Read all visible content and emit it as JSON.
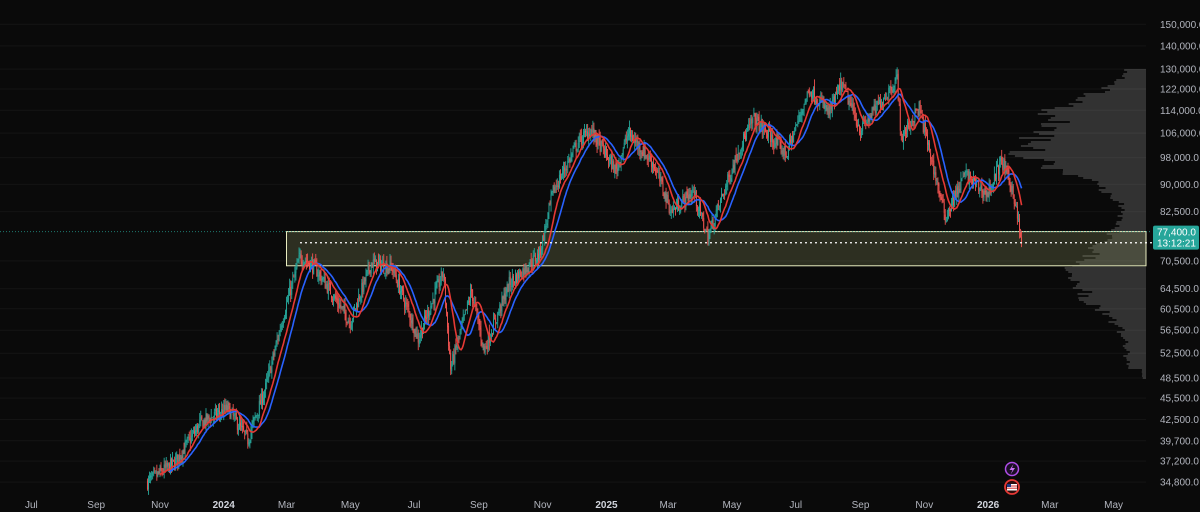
{
  "chart_data": {
    "type": "candlestick",
    "x_ticks": [
      {
        "label": "Jul",
        "bold": false
      },
      {
        "label": "Sep",
        "bold": false
      },
      {
        "label": "Nov",
        "bold": false
      },
      {
        "label": "2024",
        "bold": true
      },
      {
        "label": "Mar",
        "bold": false
      },
      {
        "label": "May",
        "bold": false
      },
      {
        "label": "Jul",
        "bold": false
      },
      {
        "label": "Sep",
        "bold": false
      },
      {
        "label": "Nov",
        "bold": false
      },
      {
        "label": "2025",
        "bold": true
      },
      {
        "label": "Mar",
        "bold": false
      },
      {
        "label": "May",
        "bold": false
      },
      {
        "label": "Jul",
        "bold": false
      },
      {
        "label": "Sep",
        "bold": false
      },
      {
        "label": "Nov",
        "bold": false
      },
      {
        "label": "2026",
        "bold": true
      },
      {
        "label": "Mar",
        "bold": false
      },
      {
        "label": "May",
        "bold": false
      }
    ],
    "x_tick_dates": [
      "2023-07-01",
      "2023-09-01",
      "2023-11-01",
      "2024-01-01",
      "2024-03-01",
      "2024-05-01",
      "2024-07-01",
      "2024-09-01",
      "2024-11-01",
      "2025-01-01",
      "2025-03-01",
      "2025-05-01",
      "2025-07-01",
      "2025-09-01",
      "2025-11-01",
      "2026-01-01",
      "2026-03-01",
      "2026-05-01"
    ],
    "x_range": [
      "2023-06-01",
      "2026-06-01"
    ],
    "y_scale": "log",
    "y_ticks": [
      "150,000.0",
      "140,000.0",
      "130,000.0",
      "122,000.0",
      "114,000.0",
      "106,000.0",
      "98,000.0",
      "90,000.0",
      "82,500.0",
      "70,500.0",
      "64,500.0",
      "60,500.0",
      "56,500.0",
      "52,500.0",
      "48,500.0",
      "45,500.0",
      "42,500.0",
      "39,700.0",
      "37,200.0",
      "34,800.0"
    ],
    "y_tick_values": [
      150000,
      140000,
      130000,
      122000,
      114000,
      106000,
      98000,
      90000,
      82500,
      70500,
      64500,
      60500,
      56500,
      52500,
      48500,
      45500,
      42500,
      39700,
      37200,
      34800
    ],
    "y_range": [
      33500,
      158000
    ],
    "price_path": [
      [
        "2023-10-20",
        34800
      ],
      [
        "2023-11-15",
        37000
      ],
      [
        "2023-12-10",
        42000
      ],
      [
        "2024-01-05",
        44000
      ],
      [
        "2024-01-24",
        39800
      ],
      [
        "2024-02-10",
        47000
      ],
      [
        "2024-02-28",
        60000
      ],
      [
        "2024-03-14",
        71500
      ],
      [
        "2024-03-28",
        69000
      ],
      [
        "2024-04-15",
        63000
      ],
      [
        "2024-05-01",
        58000
      ],
      [
        "2024-05-21",
        70000
      ],
      [
        "2024-06-10",
        69000
      ],
      [
        "2024-07-05",
        55000
      ],
      [
        "2024-07-29",
        68000
      ],
      [
        "2024-08-05",
        50000
      ],
      [
        "2024-08-25",
        64000
      ],
      [
        "2024-09-06",
        53000
      ],
      [
        "2024-09-30",
        65500
      ],
      [
        "2024-10-29",
        72000
      ],
      [
        "2024-11-11",
        88000
      ],
      [
        "2024-12-05",
        103000
      ],
      [
        "2024-12-17",
        107000
      ],
      [
        "2025-01-10",
        94000
      ],
      [
        "2025-01-22",
        106000
      ],
      [
        "2025-02-15",
        96000
      ],
      [
        "2025-03-04",
        82500
      ],
      [
        "2025-03-25",
        88000
      ],
      [
        "2025-04-08",
        76000
      ],
      [
        "2025-05-08",
        101000
      ],
      [
        "2025-05-22",
        111000
      ],
      [
        "2025-06-22",
        99000
      ],
      [
        "2025-07-14",
        122000
      ],
      [
        "2025-08-02",
        113000
      ],
      [
        "2025-08-14",
        124000
      ],
      [
        "2025-09-01",
        107000
      ],
      [
        "2025-09-20",
        117000
      ],
      [
        "2025-10-06",
        126000
      ],
      [
        "2025-10-10",
        104000
      ],
      [
        "2025-10-27",
        115000
      ],
      [
        "2025-11-21",
        81000
      ],
      [
        "2025-12-10",
        93000
      ],
      [
        "2025-12-31",
        87000
      ],
      [
        "2026-01-14",
        97000
      ],
      [
        "2026-01-25",
        88000
      ],
      [
        "2026-02-02",
        74500
      ]
    ],
    "zone": {
      "upper": 77400,
      "lower": 69400,
      "start": "2024-03-01"
    },
    "last_price": "77,400.0",
    "countdown": "13:12:21",
    "last_price_value": 77400,
    "dotted_level": 74700,
    "colors": {
      "up": "#26a69a",
      "down": "#ef5350",
      "ma_fast": "#e53935",
      "ma_slow": "#2962ff",
      "zone_fill": "#8a8f5c",
      "zone_border": "#e8ecc0",
      "volume_profile": "#9e9e9e",
      "price_label_bg": "#26a69a",
      "background": "#0a0a0a"
    },
    "icons": {
      "event_a": "lightning-icon",
      "event_b": "us-flag-icon"
    }
  }
}
